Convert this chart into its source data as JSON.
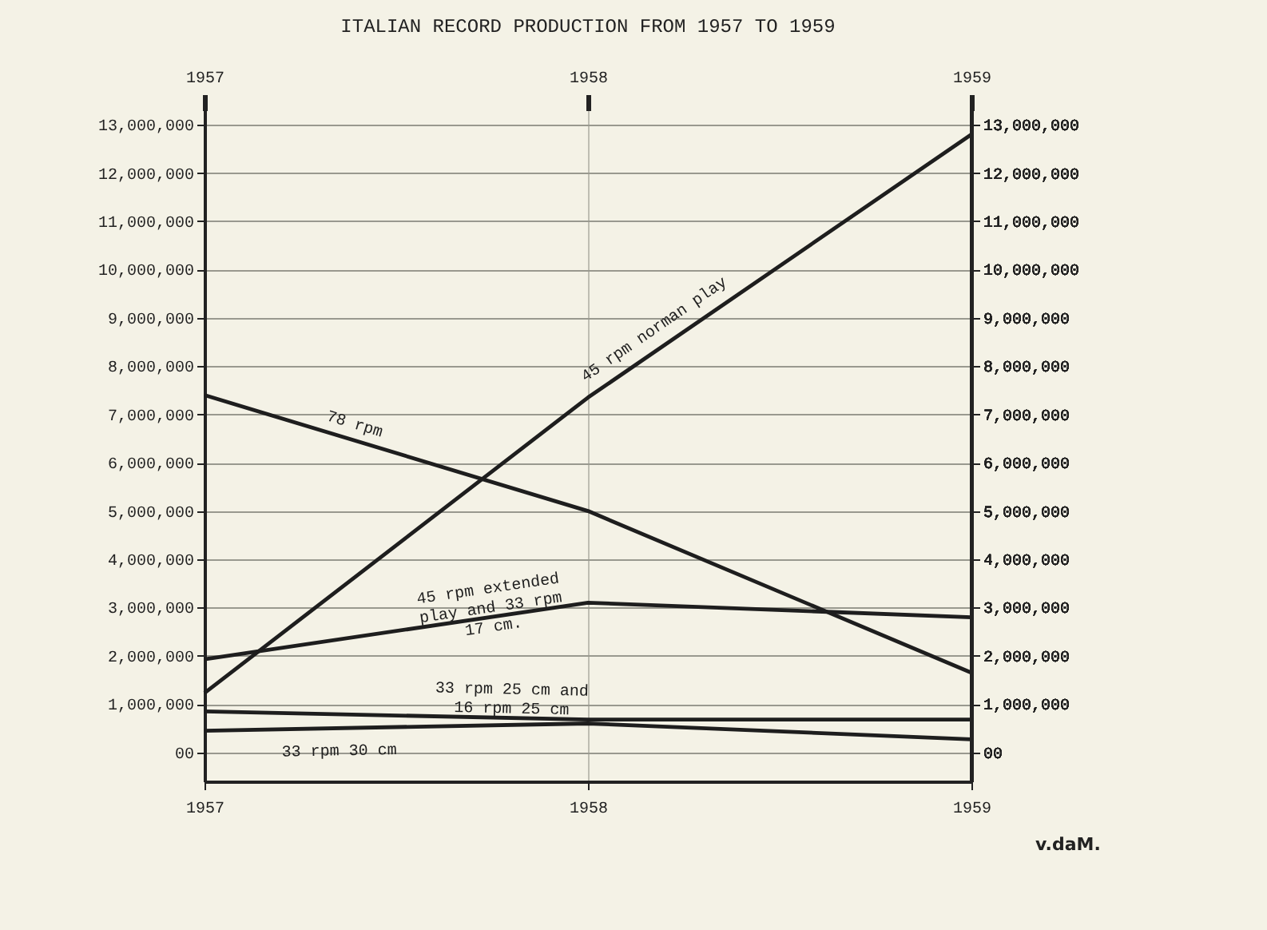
{
  "chart_data": {
    "type": "line",
    "title": "ITALIAN RECORD PRODUCTION FROM 1957 TO 1959",
    "categories": [
      "1957",
      "1958",
      "1959"
    ],
    "series": [
      {
        "name": "45 rpm norman play",
        "color": "#1e1e1e",
        "values": [
          1230000,
          7350000,
          12800000
        ]
      },
      {
        "name": "78 rpm",
        "color": "#1e1e1e",
        "values": [
          7400000,
          5000000,
          1650000
        ]
      },
      {
        "name": "45 rpm extended play and 33 rpm 17 cm.",
        "color": "#1e1e1e",
        "values": [
          1930000,
          3100000,
          2800000
        ]
      },
      {
        "name": "33 rpm 25 cm and 16 rpm 25 cm",
        "color": "#1e1e1e",
        "values": [
          850000,
          680000,
          680000
        ]
      },
      {
        "name": "33 rpm 30 cm",
        "color": "#1e1e1e",
        "values": [
          450000,
          600000,
          270000
        ]
      }
    ],
    "ylim": [
      -600000,
      13300000
    ],
    "yticks": [
      {
        "value": 0,
        "label": "00"
      },
      {
        "value": 1000000,
        "label": "1,000,000"
      },
      {
        "value": 2000000,
        "label": "2,000,000"
      },
      {
        "value": 3000000,
        "label": "3,000,000"
      },
      {
        "value": 4000000,
        "label": "4,000,000"
      },
      {
        "value": 5000000,
        "label": "5,000,000"
      },
      {
        "value": 6000000,
        "label": "6,000,000"
      },
      {
        "value": 7000000,
        "label": "7,000,000"
      },
      {
        "value": 8000000,
        "label": "8,000,000"
      },
      {
        "value": 9000000,
        "label": "9,000,000"
      },
      {
        "value": 10000000,
        "label": "10,000,000"
      },
      {
        "value": 11000000,
        "label": "11,000,000"
      },
      {
        "value": 12000000,
        "label": "12,000,000"
      },
      {
        "value": 13000000,
        "label": "13,000,000"
      }
    ],
    "y2lim": [
      -600000,
      13300000
    ],
    "y2ticks": [
      {
        "value": 0,
        "label": "00"
      },
      {
        "value": 1000000,
        "label": "1,000,000"
      },
      {
        "value": 2000000,
        "label": "2,000,000"
      },
      {
        "value": 3000000,
        "label": "3,000,000"
      },
      {
        "value": 4000000,
        "label": "4,000,000"
      },
      {
        "value": 5000000,
        "label": "5,000,000"
      },
      {
        "value": 6000000,
        "label": "6,000,000"
      },
      {
        "value": 7000000,
        "label": "7,000,000"
      },
      {
        "value": 8000000,
        "label": "8,000,000"
      },
      {
        "value": 9000000,
        "label": "9,000,000"
      },
      {
        "value": 10000000,
        "label": "10,000,000"
      },
      {
        "value": 11000000,
        "label": "11,000,000"
      },
      {
        "value": 12000000,
        "label": "12,000,000"
      },
      {
        "value": 13000000,
        "label": "13,000,000"
      }
    ],
    "grid": true,
    "marker": "none",
    "line_style": "solid",
    "annotations": [
      "v.daM."
    ]
  }
}
